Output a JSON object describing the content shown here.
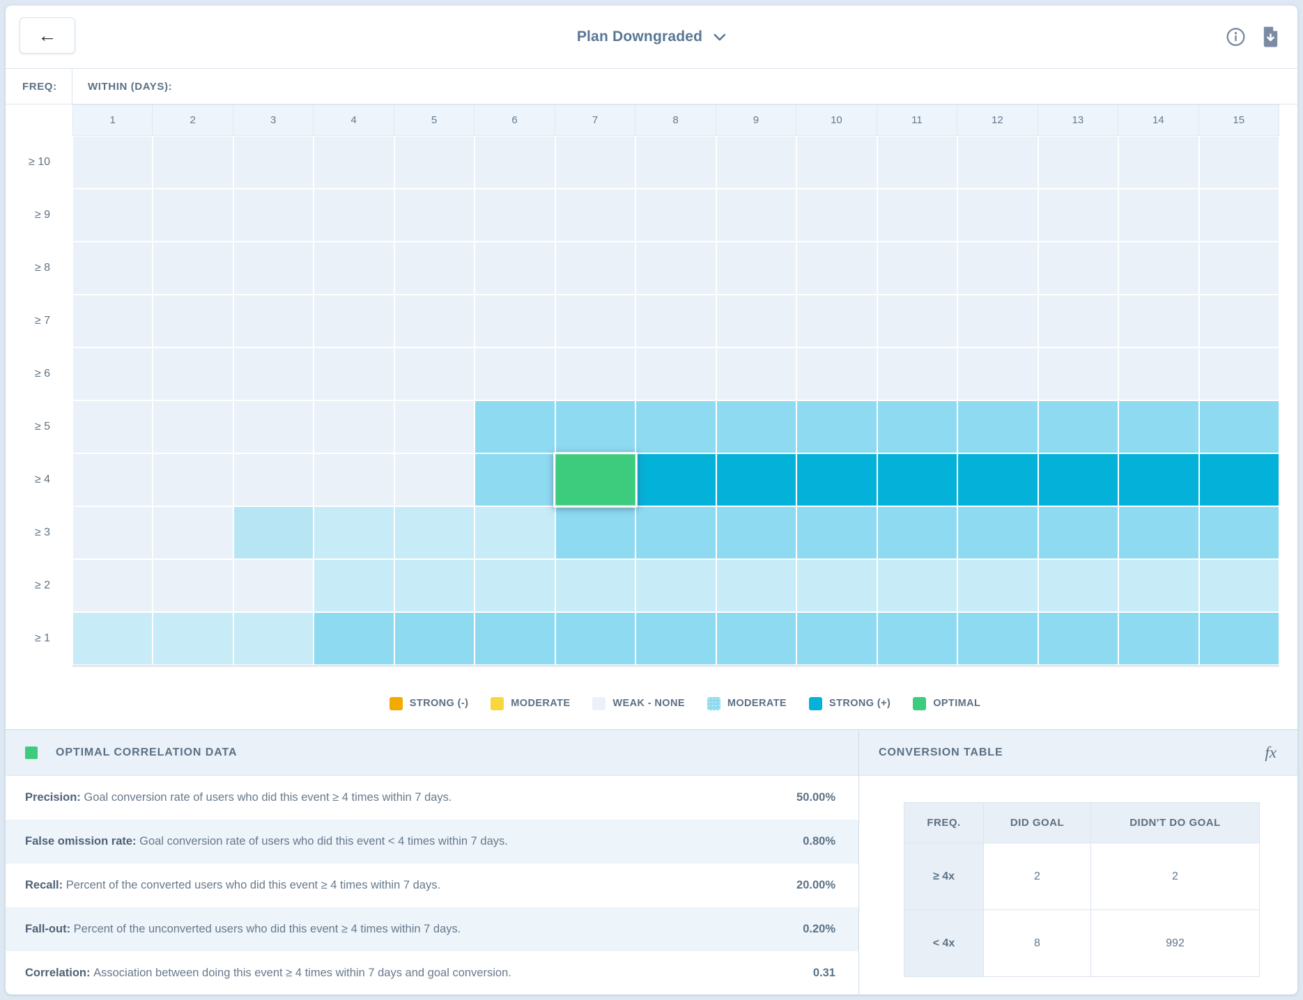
{
  "header": {
    "title": "Plan Downgraded",
    "back_icon_glyph": "←"
  },
  "matrix": {
    "freq_label": "FREQ:",
    "within_label": "WITHIN (DAYS):",
    "columns": [
      "1",
      "2",
      "3",
      "4",
      "5",
      "6",
      "7",
      "8",
      "9",
      "10",
      "11",
      "12",
      "13",
      "14",
      "15"
    ],
    "row_labels": [
      "≥ 10",
      "≥ 9",
      "≥ 8",
      "≥ 7",
      "≥ 6",
      "≥ 5",
      "≥ 4",
      "≥ 3",
      "≥ 2",
      "≥ 1"
    ],
    "cells": [
      [
        "w",
        "w",
        "w",
        "w",
        "w",
        "w",
        "w",
        "w",
        "w",
        "w",
        "w",
        "w",
        "w",
        "w",
        "w"
      ],
      [
        "w",
        "w",
        "w",
        "w",
        "w",
        "w",
        "w",
        "w",
        "w",
        "w",
        "w",
        "w",
        "w",
        "w",
        "w"
      ],
      [
        "w",
        "w",
        "w",
        "w",
        "w",
        "w",
        "w",
        "w",
        "w",
        "w",
        "w",
        "w",
        "w",
        "w",
        "w"
      ],
      [
        "w",
        "w",
        "w",
        "w",
        "w",
        "w",
        "w",
        "w",
        "w",
        "w",
        "w",
        "w",
        "w",
        "w",
        "w"
      ],
      [
        "w",
        "w",
        "w",
        "w",
        "w",
        "w",
        "w",
        "w",
        "w",
        "w",
        "w",
        "w",
        "w",
        "w",
        "w"
      ],
      [
        "w",
        "w",
        "w",
        "w",
        "w",
        "m",
        "m",
        "m",
        "m",
        "m",
        "m",
        "m",
        "m",
        "m",
        "m"
      ],
      [
        "w",
        "w",
        "w",
        "w",
        "w",
        "m",
        "o",
        "s",
        "s",
        "s",
        "s",
        "s",
        "s",
        "s",
        "s"
      ],
      [
        "w",
        "w",
        "l2",
        "l",
        "l",
        "l",
        "m",
        "m",
        "m",
        "m",
        "m",
        "m",
        "m",
        "m",
        "m"
      ],
      [
        "w",
        "w",
        "w",
        "l",
        "l",
        "l",
        "l",
        "l",
        "l",
        "l",
        "l",
        "l",
        "l",
        "l",
        "l"
      ],
      [
        "l",
        "l",
        "l",
        "m",
        "m",
        "m",
        "m",
        "m",
        "m",
        "m",
        "m",
        "m",
        "m",
        "m",
        "m"
      ]
    ],
    "selected_cell": {
      "row": "≥ 4",
      "column": "7"
    }
  },
  "colors": {
    "levels": {
      "w": "#eaf1f8",
      "l": "#c7ebf7",
      "l2": "#b7e5f4",
      "m": "#8edaf0",
      "s": "#04b1d8",
      "o": "#3dcb7d",
      "neg_strong": "#f2a900",
      "neg_moderate": "#f8d73e"
    },
    "accent_green": "#3dcb7d"
  },
  "legend": {
    "items": [
      {
        "label": "STRONG (-)",
        "level": "neg_strong",
        "textured": false
      },
      {
        "label": "MODERATE",
        "level": "neg_moderate",
        "textured": false
      },
      {
        "label": "WEAK - NONE",
        "level": "w",
        "textured": false
      },
      {
        "label": "MODERATE",
        "level": "m",
        "textured": true
      },
      {
        "label": "STRONG (+)",
        "level": "s",
        "textured": false
      },
      {
        "label": "OPTIMAL",
        "level": "o",
        "textured": false
      }
    ]
  },
  "optimal_panel": {
    "title": "OPTIMAL CORRELATION DATA",
    "stats": [
      {
        "label": "Precision:",
        "description": "Goal conversion rate of users who did this event ≥ 4 times within 7 days.",
        "value": "50.00%"
      },
      {
        "label": "False omission rate:",
        "description": "Goal conversion rate of users who did this event < 4 times within 7 days.",
        "value": "0.80%"
      },
      {
        "label": "Recall:",
        "description": "Percent of the converted users who did this event ≥ 4 times within 7 days.",
        "value": "20.00%"
      },
      {
        "label": "Fall-out:",
        "description": "Percent of the unconverted users who did this event ≥ 4 times within 7 days.",
        "value": "0.20%"
      },
      {
        "label": "Correlation:",
        "description": "Association between doing this event ≥ 4 times within 7 days and goal conversion.",
        "value": "0.31"
      }
    ]
  },
  "conversion_panel": {
    "title": "CONVERSION TABLE",
    "formula_icon_glyph": "fx",
    "table": {
      "headers": [
        "FREQ.",
        "DID GOAL",
        "DIDN'T DO GOAL"
      ],
      "rows": [
        [
          "≥ 4x",
          "2",
          "2"
        ],
        [
          "< 4x",
          "8",
          "992"
        ]
      ]
    }
  }
}
